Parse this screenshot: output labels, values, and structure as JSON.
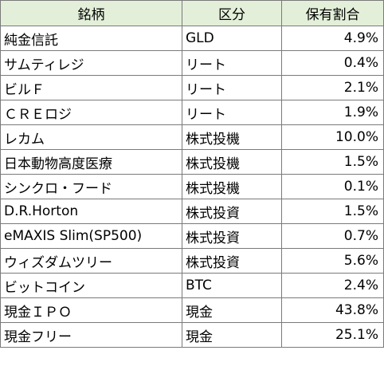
{
  "table": {
    "headers": [
      "銘柄",
      "区分",
      "保有割合"
    ],
    "rows": [
      {
        "name": "純金信託",
        "category": "GLD",
        "share": "4.9%"
      },
      {
        "name": "サムティレジ",
        "category": "リート",
        "share": "0.4%"
      },
      {
        "name": "ビルＦ",
        "category": "リート",
        "share": "2.1%"
      },
      {
        "name": "ＣＲＥロジ",
        "category": "リート",
        "share": "1.9%"
      },
      {
        "name": "レカム",
        "category": "株式投機",
        "share": "10.0%"
      },
      {
        "name": "日本動物高度医療",
        "category": "株式投機",
        "share": "1.5%"
      },
      {
        "name": "シンクロ・フード",
        "category": "株式投機",
        "share": "0.1%"
      },
      {
        "name": "D.R.Horton",
        "category": "株式投資",
        "share": "1.5%"
      },
      {
        "name": "eMAXIS Slim(SP500)",
        "category": "株式投資",
        "share": "0.7%"
      },
      {
        "name": "ウィズダムツリー",
        "category": "株式投資",
        "share": "5.6%"
      },
      {
        "name": "ビットコイン",
        "category": "BTC",
        "share": "2.4%"
      },
      {
        "name": "現金ＩＰＯ",
        "category": "現金",
        "share": "43.8%"
      },
      {
        "name": "現金フリー",
        "category": "現金",
        "share": "25.1%"
      }
    ]
  },
  "colors": {
    "header_background": "#e3efd9",
    "border": "#7a7a7a"
  }
}
